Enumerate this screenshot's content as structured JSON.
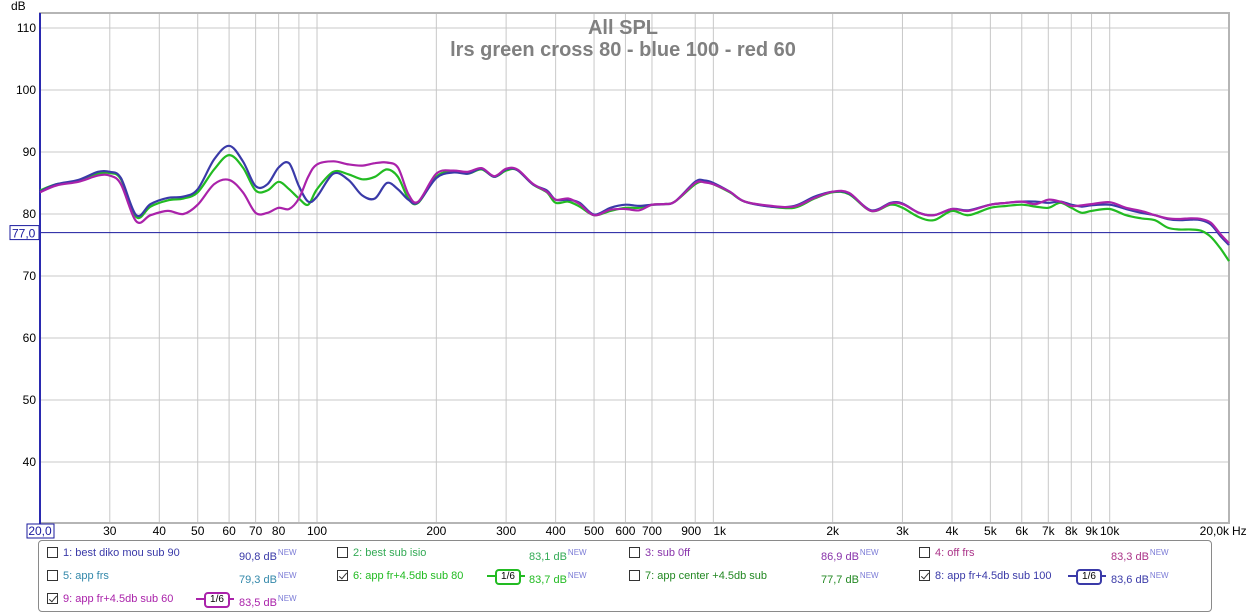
{
  "chart_data": {
    "type": "line",
    "title": "All SPL",
    "subtitle": "lrs green cross 80 - blue 100 - red 60",
    "ylabel": "dB",
    "xlabel": "Hz",
    "xscale": "log",
    "xlim": [
      20,
      20000
    ],
    "ylim": [
      30,
      112
    ],
    "grid": true,
    "y_ticks": [
      40,
      50,
      60,
      70,
      80,
      90,
      100,
      110
    ],
    "y_tick_labels": [
      "40",
      "50",
      "60",
      "70",
      "80",
      "90",
      "100",
      "110"
    ],
    "x_ticks": [
      30,
      40,
      50,
      60,
      70,
      80,
      100,
      200,
      300,
      400,
      500,
      600,
      700,
      900,
      1000,
      2000,
      3000,
      4000,
      5000,
      6000,
      7000,
      8000,
      9000,
      10000
    ],
    "x_tick_labels": [
      "30",
      "40",
      "50",
      "60",
      "70",
      "80",
      "100",
      "200",
      "300",
      "400",
      "500",
      "600",
      "700",
      "900",
      "1k",
      "2k",
      "3k",
      "4k",
      "5k",
      "6k",
      "7k",
      "8k",
      "9k",
      "10k"
    ],
    "x_minor_grid": [
      90
    ],
    "x_start_label": "20,0",
    "x_end_label": "20,0k",
    "x_unit_label": "Hz",
    "reference_line": {
      "value": 77.0,
      "label": "77,0",
      "color": "#1a1a9e"
    },
    "series": [
      {
        "name": "6: app fr+4.5db sub 80",
        "color": "#22bb22",
        "x": [
          20,
          22,
          25,
          28,
          30,
          32,
          35,
          38,
          42,
          46,
          50,
          55,
          60,
          65,
          70,
          75,
          80,
          85,
          90,
          95,
          100,
          110,
          120,
          130,
          140,
          150,
          160,
          170,
          180,
          200,
          220,
          240,
          260,
          280,
          300,
          320,
          350,
          380,
          400,
          430,
          460,
          500,
          550,
          600,
          650,
          700,
          750,
          800,
          900,
          950,
          1000,
          1100,
          1200,
          1400,
          1600,
          1800,
          2000,
          2200,
          2500,
          2800,
          3000,
          3300,
          3600,
          4000,
          4400,
          5000,
          5500,
          6000,
          6500,
          7000,
          7500,
          8000,
          8500,
          9000,
          10000,
          11000,
          12000,
          13000,
          14000,
          15000,
          16000,
          17000,
          18000,
          19000,
          20000
        ],
        "y": [
          83.8,
          84.8,
          85.3,
          86.5,
          86.6,
          85.6,
          79.5,
          81.2,
          82.2,
          82.5,
          83.5,
          87.2,
          89.5,
          87.5,
          83.8,
          83.8,
          85.2,
          84.0,
          82.5,
          81.5,
          84.0,
          86.8,
          86.4,
          85.6,
          86.0,
          87.2,
          86.0,
          82.5,
          81.8,
          86.0,
          86.9,
          86.5,
          87.2,
          86.0,
          87.0,
          87.1,
          84.8,
          83.5,
          81.8,
          82.0,
          81.2,
          79.8,
          80.5,
          81.0,
          81.0,
          81.5,
          81.6,
          82.0,
          84.8,
          85.2,
          84.8,
          83.5,
          82.0,
          81.2,
          81.0,
          82.5,
          83.5,
          83.2,
          80.5,
          81.5,
          81.0,
          79.5,
          79.0,
          80.5,
          79.8,
          81.0,
          81.3,
          81.5,
          81.2,
          81.0,
          81.8,
          81.0,
          80.2,
          80.5,
          80.8,
          79.8,
          79.3,
          79.0,
          77.8,
          77.5,
          77.5,
          77.3,
          76.3,
          74.5,
          72.4
        ]
      },
      {
        "name": "8: app fr+4.5db sub 100",
        "color": "#3a3aa8",
        "x": [
          20,
          22,
          25,
          28,
          30,
          32,
          35,
          38,
          42,
          46,
          50,
          55,
          60,
          65,
          70,
          75,
          80,
          85,
          90,
          95,
          100,
          110,
          120,
          130,
          140,
          150,
          160,
          170,
          180,
          200,
          220,
          240,
          260,
          280,
          300,
          320,
          350,
          380,
          400,
          430,
          460,
          500,
          550,
          600,
          650,
          700,
          750,
          800,
          900,
          950,
          1000,
          1100,
          1200,
          1400,
          1600,
          1800,
          2000,
          2200,
          2500,
          2800,
          3000,
          3300,
          3600,
          4000,
          4400,
          5000,
          5500,
          6000,
          6500,
          7000,
          7500,
          8000,
          8500,
          9000,
          10000,
          11000,
          12000,
          13000,
          14000,
          15000,
          16000,
          17000,
          18000,
          19000,
          20000
        ],
        "y": [
          83.6,
          84.8,
          85.5,
          86.8,
          86.8,
          85.8,
          79.8,
          81.6,
          82.6,
          82.8,
          84.0,
          88.8,
          91.0,
          88.5,
          84.5,
          84.8,
          87.5,
          88.2,
          84.5,
          82.0,
          82.8,
          86.5,
          85.5,
          83.0,
          82.5,
          85.0,
          84.0,
          82.3,
          81.9,
          85.8,
          86.7,
          86.5,
          87.3,
          86.0,
          87.2,
          87.1,
          84.8,
          83.8,
          82.3,
          82.3,
          81.8,
          79.9,
          81.0,
          81.5,
          81.3,
          81.5,
          81.6,
          82.0,
          85.2,
          85.4,
          85.0,
          83.6,
          82.0,
          81.2,
          81.3,
          82.8,
          83.6,
          83.3,
          80.6,
          81.8,
          81.7,
          80.2,
          79.8,
          80.8,
          80.6,
          81.5,
          81.8,
          82.0,
          82.0,
          81.8,
          82.0,
          81.5,
          81.2,
          81.4,
          81.5,
          80.8,
          80.2,
          79.8,
          79.2,
          79.0,
          79.1,
          79.0,
          78.3,
          76.5,
          75.0
        ]
      },
      {
        "name": "9: app fr+4.5db sub 60",
        "color": "#aa22aa",
        "x": [
          20,
          22,
          25,
          28,
          30,
          32,
          35,
          38,
          42,
          46,
          50,
          55,
          60,
          65,
          70,
          75,
          80,
          85,
          90,
          95,
          100,
          110,
          120,
          130,
          140,
          150,
          160,
          170,
          180,
          200,
          220,
          240,
          260,
          280,
          300,
          320,
          350,
          380,
          400,
          430,
          460,
          500,
          550,
          600,
          650,
          700,
          750,
          800,
          900,
          950,
          1000,
          1100,
          1200,
          1400,
          1600,
          1800,
          2000,
          2200,
          2500,
          2800,
          3000,
          3300,
          3600,
          4000,
          4400,
          5000,
          5500,
          6000,
          6500,
          7000,
          7500,
          8000,
          8500,
          9000,
          10000,
          11000,
          12000,
          13000,
          14000,
          15000,
          16000,
          17000,
          18000,
          19000,
          20000
        ],
        "y": [
          83.5,
          84.6,
          85.2,
          86.2,
          86.2,
          84.8,
          78.8,
          79.8,
          80.5,
          80.0,
          81.5,
          84.8,
          85.5,
          83.5,
          80.2,
          80.2,
          81.0,
          80.8,
          82.5,
          86.0,
          88.0,
          88.5,
          88.0,
          87.8,
          88.2,
          88.3,
          87.5,
          83.2,
          82.0,
          86.5,
          87.0,
          86.8,
          87.4,
          86.1,
          87.3,
          87.2,
          84.9,
          83.6,
          82.3,
          82.5,
          81.6,
          79.8,
          80.7,
          80.8,
          80.6,
          81.5,
          81.6,
          82.0,
          85.0,
          85.1,
          84.8,
          83.6,
          82.0,
          81.3,
          81.2,
          82.6,
          83.6,
          83.4,
          80.5,
          81.7,
          81.6,
          80.2,
          79.8,
          80.8,
          80.5,
          81.5,
          81.8,
          82.0,
          81.6,
          82.3,
          82.0,
          81.3,
          81.4,
          81.6,
          81.9,
          81.0,
          80.5,
          79.8,
          79.3,
          79.2,
          79.3,
          79.2,
          78.6,
          76.8,
          75.3
        ]
      }
    ]
  },
  "legend": {
    "new_tag": "NEW",
    "smooth_label": "1/6",
    "items": [
      {
        "label": "1: best diko mou sub 90",
        "value": "90,8 dB",
        "color": "#3a3aa8",
        "checked": false
      },
      {
        "label": "2: best sub isio",
        "value": "83,1 dB",
        "color": "#33aa55",
        "checked": false
      },
      {
        "label": "3: sub 0ff",
        "value": "86,9 dB",
        "color": "#8833aa",
        "checked": false
      },
      {
        "label": "4: off frs",
        "value": "83,3 dB",
        "color": "#aa3388",
        "checked": false
      },
      {
        "label": "5: app frs",
        "value": "79,3 dB",
        "color": "#3388aa",
        "checked": false
      },
      {
        "label": "6: app fr+4.5db sub 80",
        "value": "83,7 dB",
        "color": "#22bb22",
        "checked": true,
        "smoothing": true
      },
      {
        "label": "7: app center +4.5db sub",
        "value": "77,7 dB",
        "color": "#228822",
        "checked": false
      },
      {
        "label": "8: app fr+4.5db sub 100",
        "value": "83,6 dB",
        "color": "#3a3aa8",
        "checked": true,
        "smoothing": true
      },
      {
        "label": "9: app fr+4.5db sub 60",
        "value": "83,5 dB",
        "color": "#aa22aa",
        "checked": true,
        "smoothing": true
      }
    ]
  }
}
